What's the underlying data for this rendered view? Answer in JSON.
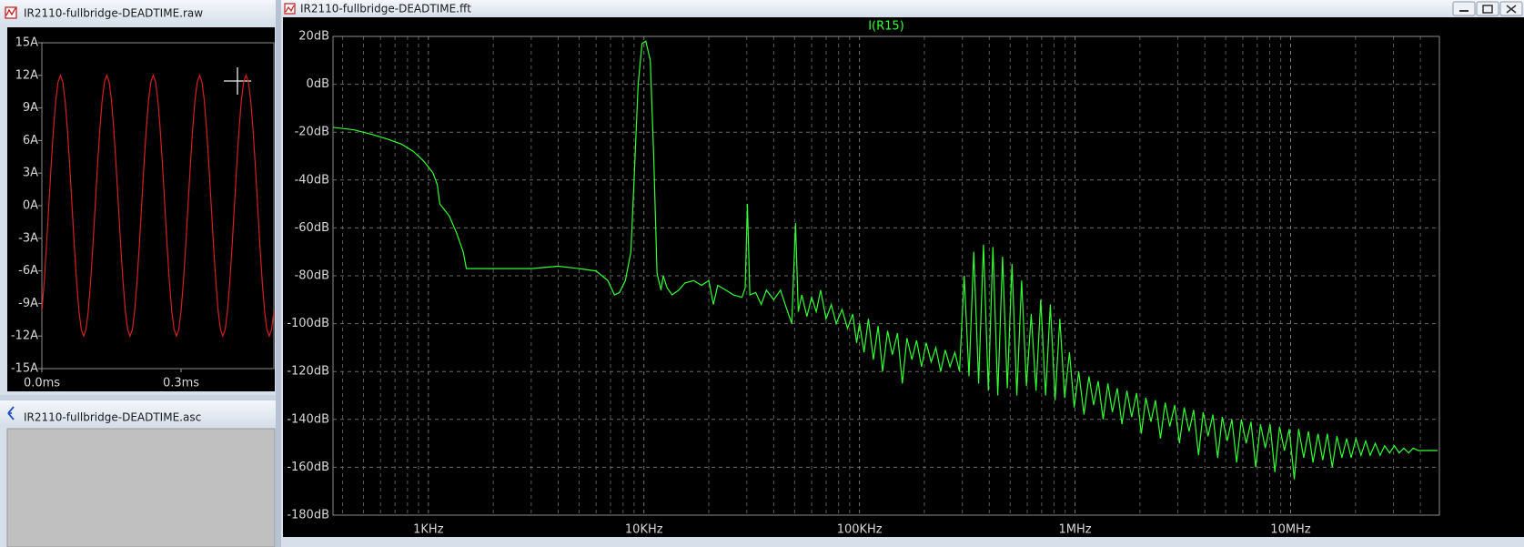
{
  "windows": [
    {
      "title": "IR2110-fullbridge-DEADTIME.raw"
    },
    {
      "title": "IR2110-fullbridge-DEADTIME.asc"
    },
    {
      "title": "IR2110-fullbridge-DEADTIME.fft"
    }
  ],
  "chart_data": [
    {
      "type": "line",
      "color": "#d42020",
      "xlim": [
        0,
        0.5
      ],
      "ylim": [
        -15,
        15
      ],
      "xticks": [
        {
          "value": 0,
          "label": "0.0ms"
        },
        {
          "value": 0.3,
          "label": "0.3ms"
        }
      ],
      "yticks": [
        {
          "value": 15,
          "label": "15A"
        },
        {
          "value": 12,
          "label": "12A"
        },
        {
          "value": 9,
          "label": "9A"
        },
        {
          "value": 6,
          "label": "6A"
        },
        {
          "value": 3,
          "label": "3A"
        },
        {
          "value": 0,
          "label": "0A"
        },
        {
          "value": -3,
          "label": "-3A"
        },
        {
          "value": -6,
          "label": "-6A"
        },
        {
          "value": -9,
          "label": "-9A"
        },
        {
          "value": -12,
          "label": "-12A"
        },
        {
          "value": -15,
          "label": "-15A"
        }
      ],
      "grid": false,
      "x": [
        0,
        0.005,
        0.01,
        0.015,
        0.02,
        0.025,
        0.03,
        0.035,
        0.04,
        0.045,
        0.05,
        0.055,
        0.06,
        0.065,
        0.07,
        0.075,
        0.08,
        0.085,
        0.09,
        0.095,
        0.1,
        0.105,
        0.11,
        0.115,
        0.12,
        0.125,
        0.13,
        0.135,
        0.14,
        0.145,
        0.15,
        0.155,
        0.16,
        0.165,
        0.17,
        0.175,
        0.18,
        0.185,
        0.19,
        0.195,
        0.2,
        0.205,
        0.21,
        0.215,
        0.22,
        0.225,
        0.23,
        0.235,
        0.24,
        0.245,
        0.25,
        0.255,
        0.26,
        0.265,
        0.27,
        0.275,
        0.28,
        0.285,
        0.29,
        0.295,
        0.3,
        0.305,
        0.31,
        0.315,
        0.32,
        0.325,
        0.33,
        0.335,
        0.34,
        0.345,
        0.35,
        0.355,
        0.36,
        0.365,
        0.37,
        0.375,
        0.38,
        0.385,
        0.39,
        0.395,
        0.4,
        0.405,
        0.41,
        0.415,
        0.42,
        0.425,
        0.43,
        0.435,
        0.44,
        0.445,
        0.45,
        0.455,
        0.46,
        0.465,
        0.47,
        0.475,
        0.48,
        0.485,
        0.49,
        0.495,
        0.5
      ],
      "values": [
        -9.71,
        -7.05,
        -3.71,
        0,
        3.71,
        7.05,
        9.71,
        11.41,
        12,
        11.41,
        9.71,
        7.05,
        3.71,
        0,
        -3.71,
        -7.05,
        -9.71,
        -11.41,
        -12,
        -11.41,
        -9.71,
        -7.05,
        -3.71,
        0,
        3.71,
        7.05,
        9.71,
        11.41,
        12,
        11.41,
        9.71,
        7.05,
        3.71,
        0,
        -3.71,
        -7.05,
        -9.71,
        -11.41,
        -12,
        -11.41,
        -9.71,
        -7.05,
        -3.71,
        0,
        3.71,
        7.05,
        9.71,
        11.41,
        12,
        11.41,
        9.71,
        7.05,
        3.71,
        0,
        -3.71,
        -7.05,
        -9.71,
        -11.41,
        -12,
        -11.41,
        -9.71,
        -7.05,
        -3.71,
        0,
        3.71,
        7.05,
        9.71,
        11.41,
        12,
        11.41,
        9.71,
        7.05,
        3.71,
        0,
        -3.71,
        -7.05,
        -9.71,
        -11.41,
        -12,
        -11.41,
        -9.71,
        -7.05,
        -3.71,
        0,
        3.71,
        7.05,
        9.71,
        11.41,
        12,
        11.41,
        9.71,
        7.05,
        3.71,
        0,
        -3.71,
        -7.05,
        -9.71,
        -11.41,
        -12,
        -11.41,
        -9.71
      ]
    },
    {
      "type": "line",
      "title": "I(R15)",
      "color": "#33ff33",
      "xscale": "log",
      "xlim": [
        361,
        49000000
      ],
      "ylim": [
        -180,
        20
      ],
      "grid": true,
      "xticks": [
        {
          "value": 1000,
          "label": "1KHz"
        },
        {
          "value": 10000,
          "label": "10KHz"
        },
        {
          "value": 100000,
          "label": "100KHz"
        },
        {
          "value": 1000000,
          "label": "1MHz"
        },
        {
          "value": 10000000,
          "label": "10MHz"
        }
      ],
      "xminorticks": [
        400,
        500,
        600,
        700,
        800,
        900,
        2000,
        3000,
        4000,
        5000,
        6000,
        7000,
        8000,
        9000,
        20000,
        30000,
        40000,
        50000,
        60000,
        70000,
        80000,
        90000,
        200000,
        300000,
        400000,
        500000,
        600000,
        700000,
        800000,
        900000,
        2000000,
        3000000,
        4000000,
        5000000,
        6000000,
        7000000,
        8000000,
        9000000,
        20000000,
        30000000,
        40000000
      ],
      "yticks": [
        {
          "value": 20,
          "label": "20dB"
        },
        {
          "value": 0,
          "label": "0dB"
        },
        {
          "value": -20,
          "label": "-20dB"
        },
        {
          "value": -40,
          "label": "-40dB"
        },
        {
          "value": -60,
          "label": "-60dB"
        },
        {
          "value": -80,
          "label": "-80dB"
        },
        {
          "value": -100,
          "label": "-100dB"
        },
        {
          "value": -120,
          "label": "-120dB"
        },
        {
          "value": -140,
          "label": "-140dB"
        },
        {
          "value": -160,
          "label": "-160dB"
        },
        {
          "value": -180,
          "label": "-180dB"
        }
      ],
      "x": [
        361,
        450,
        550,
        650,
        750,
        850,
        950,
        1050,
        1100,
        1130,
        1250,
        1350,
        1450,
        1500,
        2000,
        3000,
        4000,
        5000,
        6000,
        6800,
        7300,
        7700,
        8200,
        8700,
        9000,
        9400,
        9800,
        10200,
        10700,
        11100,
        11500,
        12000,
        12300,
        12800,
        13500,
        14500,
        15500,
        17000,
        18500,
        20000,
        21000,
        22000,
        24000,
        26000,
        28500,
        29500,
        30200,
        31000,
        33000,
        35000,
        37000,
        40000,
        43000,
        46000,
        48500,
        50500,
        52000,
        54000,
        57000,
        60000,
        63000,
        66000,
        70000,
        74000,
        78000,
        83000,
        88000,
        93000,
        97000,
        100000,
        105000,
        110000,
        116000,
        122000,
        128000,
        135000,
        142000,
        150000,
        158000,
        166000,
        175000,
        184000,
        194000,
        204000,
        215000,
        226000,
        238000,
        250000,
        263000,
        277000,
        291000,
        306000,
        322000,
        339000,
        357000,
        376000,
        396000,
        416000,
        438000,
        461000,
        485000,
        510000,
        537000,
        565000,
        595000,
        626000,
        659000,
        693000,
        730000,
        768000,
        808000,
        850000,
        895000,
        942000,
        991000,
        1040000,
        1100000,
        1160000,
        1220000,
        1280000,
        1350000,
        1420000,
        1490000,
        1570000,
        1650000,
        1740000,
        1830000,
        1930000,
        2030000,
        2130000,
        2250000,
        2360000,
        2490000,
        2620000,
        2750000,
        2900000,
        3050000,
        3210000,
        3380000,
        3550000,
        3740000,
        3930000,
        4140000,
        4360000,
        4590000,
        4820000,
        5080000,
        5340000,
        5620000,
        5910000,
        6220000,
        6550000,
        6890000,
        7250000,
        7630000,
        8030000,
        8450000,
        8890000,
        9360000,
        9850000,
        10400000,
        10900000,
        11500000,
        12100000,
        12700000,
        13400000,
        14100000,
        14800000,
        15600000,
        16400000,
        17300000,
        18200000,
        19100000,
        20100000,
        21200000,
        22300000,
        23400000,
        24700000,
        26000000,
        27300000,
        28800000,
        30300000,
        31900000,
        33500000,
        35300000,
        37100000,
        39100000,
        41100000,
        43300000,
        45600000,
        48000000
      ],
      "values": [
        -18,
        -19,
        -21,
        -23,
        -25,
        -28,
        -32,
        -37,
        -42,
        -50,
        -55,
        -62,
        -70,
        -77,
        -77,
        -77,
        -76,
        -77,
        -78,
        -82,
        -88,
        -87,
        -82,
        -70,
        -40,
        0,
        17,
        18,
        10,
        -30,
        -79,
        -86,
        -80,
        -85,
        -88,
        -86,
        -83,
        -82,
        -84,
        -82,
        -92,
        -84,
        -86,
        -88,
        -89,
        -85,
        -50,
        -88,
        -87,
        -92,
        -86,
        -90,
        -86,
        -94,
        -100,
        -58,
        -95,
        -88,
        -97,
        -89,
        -95,
        -86,
        -98,
        -92,
        -100,
        -94,
        -102,
        -96,
        -108,
        -100,
        -112,
        -98,
        -115,
        -101,
        -120,
        -103,
        -113,
        -104,
        -125,
        -106,
        -115,
        -107,
        -118,
        -108,
        -116,
        -110,
        -120,
        -111,
        -118,
        -112,
        -120,
        -80,
        -122,
        -70,
        -125,
        -67,
        -128,
        -68,
        -130,
        -72,
        -127,
        -75,
        -130,
        -82,
        -126,
        -96,
        -128,
        -90,
        -130,
        -92,
        -132,
        -98,
        -131,
        -112,
        -135,
        -120,
        -138,
        -122,
        -134,
        -124,
        -140,
        -125,
        -137,
        -127,
        -142,
        -128,
        -139,
        -129,
        -146,
        -131,
        -141,
        -132,
        -148,
        -133,
        -143,
        -134,
        -150,
        -135,
        -145,
        -136,
        -155,
        -137,
        -147,
        -138,
        -156,
        -139,
        -149,
        -140,
        -158,
        -140,
        -150,
        -141,
        -160,
        -142,
        -152,
        -142,
        -162,
        -143,
        -153,
        -144,
        -165,
        -144,
        -156,
        -145,
        -158,
        -146,
        -157,
        -146,
        -160,
        -147,
        -156,
        -148,
        -156,
        -148,
        -155,
        -149,
        -155,
        -150,
        -155,
        -151,
        -154,
        -151,
        -154,
        -152,
        -154,
        -152,
        -153,
        -153,
        -153,
        -153,
        -153
      ]
    }
  ]
}
